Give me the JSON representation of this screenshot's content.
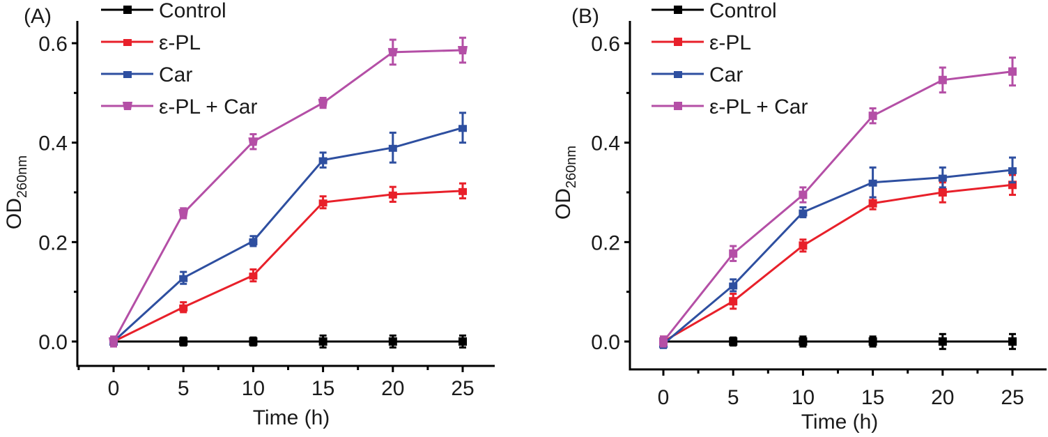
{
  "chart_data": [
    {
      "panel_label": "(A)",
      "type": "line",
      "title": "",
      "xlabel": "Time (h)",
      "ylabel": "OD",
      "ylabel_subscript": "260nm",
      "xlim": [
        -2.5,
        27.5
      ],
      "ylim": [
        -0.06,
        0.64
      ],
      "x_ticks": [
        0,
        5,
        10,
        15,
        20,
        25
      ],
      "x_tick_labels": [
        "0",
        "5",
        "10",
        "15",
        "20",
        "25"
      ],
      "y_ticks": [
        0.0,
        0.2,
        0.4,
        0.6
      ],
      "y_tick_labels": [
        "0.0",
        "0.2",
        "0.4",
        "0.6"
      ],
      "grid": false,
      "legend_position": "top-left",
      "x": [
        0,
        5,
        10,
        15,
        20,
        25
      ],
      "series": [
        {
          "name": "Control",
          "color": "#000000",
          "marker": "square",
          "values": [
            0.0,
            0.0,
            0.0,
            0.0,
            0.0,
            0.0
          ],
          "errors": [
            0.005,
            0.008,
            0.008,
            0.012,
            0.012,
            0.012
          ]
        },
        {
          "name": "ε-PL",
          "color": "#E8202A",
          "marker": "triangle-up",
          "values": [
            0.0,
            0.069,
            0.133,
            0.28,
            0.296,
            0.303
          ],
          "errors": [
            0.005,
            0.01,
            0.012,
            0.012,
            0.015,
            0.015
          ]
        },
        {
          "name": "Car",
          "color": "#2E4FA0",
          "marker": "triangle-up",
          "values": [
            0.0,
            0.128,
            0.202,
            0.365,
            0.39,
            0.43
          ],
          "errors": [
            0.005,
            0.012,
            0.01,
            0.015,
            0.03,
            0.03
          ]
        },
        {
          "name": "ε-PL + Car",
          "color": "#B44FA6",
          "marker": "triangle-down",
          "values": [
            0.0,
            0.258,
            0.402,
            0.48,
            0.582,
            0.586
          ],
          "errors": [
            0.01,
            0.01,
            0.015,
            0.01,
            0.025,
            0.025
          ]
        }
      ]
    },
    {
      "panel_label": "(B)",
      "type": "line",
      "title": "",
      "xlabel": "Time (h)",
      "ylabel": "OD",
      "ylabel_subscript": "260nm",
      "xlim": [
        -2.5,
        27.5
      ],
      "ylim": [
        -0.06,
        0.64
      ],
      "x_ticks": [
        0,
        5,
        10,
        15,
        20,
        25
      ],
      "x_tick_labels": [
        "0",
        "5",
        "10",
        "15",
        "20",
        "25"
      ],
      "y_ticks": [
        0.0,
        0.2,
        0.4,
        0.6
      ],
      "y_tick_labels": [
        "0.0",
        "0.2",
        "0.4",
        "0.6"
      ],
      "grid": false,
      "legend_position": "top-left",
      "x": [
        0,
        5,
        10,
        15,
        20,
        25
      ],
      "series": [
        {
          "name": "Control",
          "color": "#000000",
          "marker": "square",
          "values": [
            0.0,
            0.0,
            0.0,
            0.0,
            0.0,
            0.0
          ],
          "errors": [
            0.005,
            0.008,
            0.01,
            0.01,
            0.015,
            0.015
          ]
        },
        {
          "name": "ε-PL",
          "color": "#E8202A",
          "marker": "square",
          "values": [
            0.0,
            0.081,
            0.193,
            0.278,
            0.3,
            0.315
          ],
          "errors": [
            0.01,
            0.015,
            0.012,
            0.012,
            0.02,
            0.02
          ]
        },
        {
          "name": "Car",
          "color": "#2E4FA0",
          "marker": "triangle-up",
          "values": [
            -0.005,
            0.113,
            0.26,
            0.32,
            0.33,
            0.345
          ],
          "errors": [
            0.008,
            0.012,
            0.01,
            0.03,
            0.02,
            0.025
          ]
        },
        {
          "name": "ε-PL + Car",
          "color": "#B44FA6",
          "marker": "square",
          "values": [
            0.0,
            0.177,
            0.295,
            0.454,
            0.526,
            0.543
          ],
          "errors": [
            0.01,
            0.015,
            0.015,
            0.015,
            0.025,
            0.028
          ]
        }
      ]
    }
  ]
}
